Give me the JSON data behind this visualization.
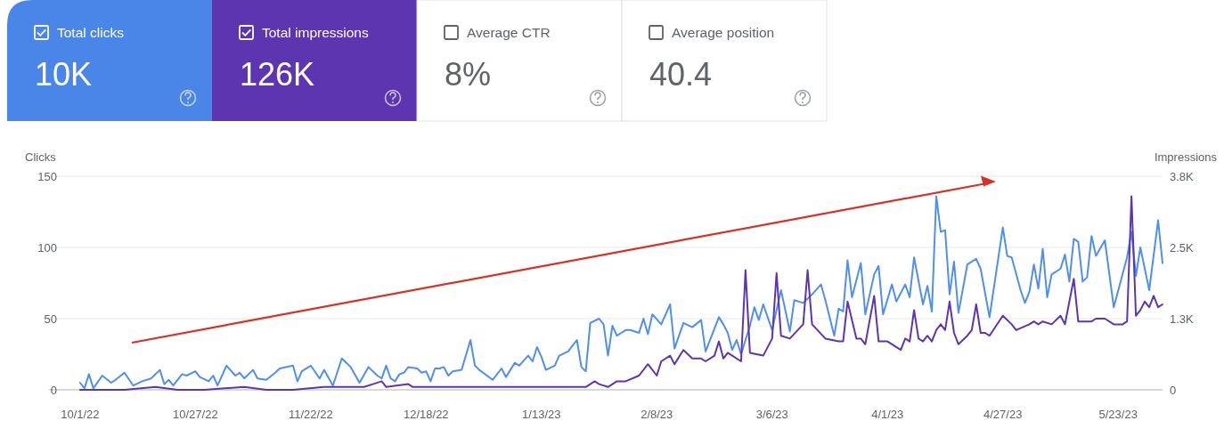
{
  "chart_data": [
    {
      "type": "other",
      "categories": [
        "Total clicks",
        "Total impressions",
        "Average CTR",
        "Average position"
      ],
      "value_labels": [
        "10K",
        "126K",
        "8%",
        "40.4"
      ],
      "colors": [
        "#4a86e8",
        "#5e35b1",
        null,
        null
      ]
    },
    {
      "type": "line",
      "ylabel": "Clicks",
      "y2label": "Impressions",
      "xlim": [
        "2022-09-24",
        "2023-06-02"
      ],
      "xticks": [
        {
          "value": "2022-10-01",
          "label": "10/1/22"
        },
        {
          "value": "2022-10-27",
          "label": "10/27/22"
        },
        {
          "value": "2022-11-22",
          "label": "11/22/22"
        },
        {
          "value": "2022-12-18",
          "label": "12/18/22"
        },
        {
          "value": "2023-01-13",
          "label": "1/13/23"
        },
        {
          "value": "2023-02-08",
          "label": "2/8/23"
        },
        {
          "value": "2023-03-06",
          "label": "3/6/23"
        },
        {
          "value": "2023-04-01",
          "label": "4/1/23"
        },
        {
          "value": "2023-04-27",
          "label": "4/27/23"
        },
        {
          "value": "2023-05-23",
          "label": "5/23/23"
        }
      ],
      "ylim": [
        0,
        150
      ],
      "yticks": [
        0,
        50,
        100,
        150
      ],
      "y2lim": [
        0,
        3750
      ],
      "y2ticks": [
        0,
        {
          "value": 1250,
          "label": "1.3K"
        },
        {
          "value": 2500,
          "label": "2.5K"
        },
        {
          "value": 3750,
          "label": "3.8K"
        }
      ],
      "grid": "y",
      "series": [
        {
          "color": "#4f8ff0",
          "x": [
            "2022-10-01",
            "2022-10-02",
            "2022-10-03",
            "2022-10-04",
            "2022-10-06",
            "2022-10-08",
            "2022-10-09",
            "2022-10-11",
            "2022-10-13",
            "2022-10-15",
            "2022-10-17",
            "2022-10-19",
            "2022-10-20",
            "2022-10-21",
            "2022-10-22",
            "2022-10-24",
            "2022-10-25",
            "2022-10-27",
            "2022-10-28",
            "2022-10-30",
            "2022-10-31",
            "2022-11-01",
            "2022-11-03",
            "2022-11-05",
            "2022-11-06",
            "2022-11-07",
            "2022-11-09",
            "2022-11-10",
            "2022-11-12",
            "2022-11-14",
            "2022-11-15",
            "2022-11-18",
            "2022-11-19",
            "2022-11-20",
            "2022-11-22",
            "2022-11-24",
            "2022-11-25",
            "2022-11-27",
            "2022-11-29",
            "2022-12-01",
            "2022-12-03",
            "2022-12-05",
            "2022-12-07",
            "2022-12-08",
            "2022-12-09",
            "2022-12-10",
            "2022-12-11",
            "2022-12-12",
            "2022-12-13",
            "2022-12-14",
            "2022-12-16",
            "2022-12-17",
            "2022-12-18",
            "2022-12-19",
            "2022-12-20",
            "2022-12-21",
            "2022-12-22",
            "2022-12-23",
            "2022-12-24",
            "2022-12-26",
            "2022-12-28",
            "2022-12-29",
            "2022-12-30",
            "2023-01-02",
            "2023-01-04",
            "2023-01-05",
            "2023-01-07",
            "2023-01-08",
            "2023-01-10",
            "2023-01-11",
            "2023-01-12",
            "2023-01-13",
            "2023-01-14",
            "2023-01-16",
            "2023-01-17",
            "2023-01-19",
            "2023-01-21",
            "2023-01-22",
            "2023-01-23",
            "2023-01-24",
            "2023-01-26",
            "2023-01-27",
            "2023-01-28",
            "2023-01-29",
            "2023-01-30",
            "2023-01-31",
            "2023-02-01",
            "2023-02-02",
            "2023-02-04",
            "2023-02-05",
            "2023-02-06",
            "2023-02-07",
            "2023-02-09",
            "2023-02-11",
            "2023-02-12",
            "2023-02-14",
            "2023-02-16",
            "2023-02-18",
            "2023-02-19",
            "2023-02-22",
            "2023-02-23",
            "2023-02-24",
            "2023-02-25",
            "2023-02-26",
            "2023-02-27",
            "2023-03-01",
            "2023-03-02",
            "2023-03-03",
            "2023-03-04",
            "2023-03-06",
            "2023-03-08",
            "2023-03-10",
            "2023-03-11",
            "2023-03-13",
            "2023-03-15",
            "2023-03-17",
            "2023-03-18",
            "2023-03-20",
            "2023-03-21",
            "2023-03-22",
            "2023-03-23",
            "2023-03-24",
            "2023-03-26",
            "2023-03-27",
            "2023-03-29",
            "2023-03-30",
            "2023-03-31",
            "2023-04-02",
            "2023-04-03",
            "2023-04-05",
            "2023-04-06",
            "2023-04-07",
            "2023-04-09",
            "2023-04-10",
            "2023-04-11",
            "2023-04-12",
            "2023-04-13",
            "2023-04-14",
            "2023-04-15",
            "2023-04-16",
            "2023-04-17",
            "2023-04-19",
            "2023-04-21",
            "2023-04-22",
            "2023-04-24",
            "2023-04-27",
            "2023-04-28",
            "2023-04-29",
            "2023-05-01",
            "2023-05-02",
            "2023-05-03",
            "2023-05-04",
            "2023-05-05",
            "2023-05-06",
            "2023-05-07",
            "2023-05-08",
            "2023-05-10",
            "2023-05-11",
            "2023-05-12",
            "2023-05-13",
            "2023-05-14",
            "2023-05-15",
            "2023-05-16",
            "2023-05-17",
            "2023-05-18",
            "2023-05-20",
            "2023-05-22",
            "2023-05-25",
            "2023-05-26",
            "2023-05-27",
            "2023-05-28",
            "2023-05-30",
            "2023-06-01",
            "2023-06-02"
          ],
          "values": [
            5,
            1,
            11,
            1,
            10,
            5,
            7,
            12,
            3,
            6,
            8,
            14,
            4,
            7,
            3,
            11,
            10,
            13,
            9,
            6,
            10,
            3,
            17,
            10,
            12,
            8,
            14,
            8,
            7,
            12,
            15,
            17,
            6,
            13,
            17,
            8,
            14,
            3,
            22,
            16,
            5,
            16,
            10,
            8,
            17,
            8,
            6,
            11,
            12,
            16,
            15,
            12,
            13,
            6,
            15,
            15,
            16,
            10,
            13,
            14,
            35,
            17,
            14,
            7,
            15,
            9,
            19,
            17,
            24,
            20,
            30,
            23,
            14,
            17,
            24,
            27,
            35,
            16,
            13,
            47,
            50,
            46,
            24,
            45,
            38,
            40,
            42,
            42,
            40,
            50,
            39,
            53,
            46,
            60,
            29,
            47,
            44,
            49,
            27,
            51,
            46,
            40,
            28,
            35,
            25,
            45,
            58,
            49,
            60,
            42,
            70,
            41,
            63,
            61,
            67,
            74,
            63,
            38,
            57,
            55,
            91,
            65,
            89,
            53,
            81,
            87,
            53,
            74,
            62,
            74,
            65,
            93,
            60,
            73,
            55,
            136,
            111,
            112,
            67,
            90,
            54,
            88,
            92,
            85,
            51,
            114,
            94,
            93,
            70,
            61,
            69,
            88,
            71,
            99,
            65,
            81,
            85,
            95,
            76,
            106,
            104,
            76,
            79,
            108,
            94,
            105,
            58,
            93,
            111,
            80,
            100,
            70,
            119,
            89
          ]
        },
        {
          "color": "#5e35b1",
          "axis": "y2",
          "x": [
            "2022-10-01",
            "2022-10-06",
            "2022-10-11",
            "2022-10-18",
            "2022-10-23",
            "2022-10-29",
            "2022-11-07",
            "2022-11-12",
            "2022-11-18",
            "2022-11-25",
            "2022-11-30",
            "2022-12-01",
            "2022-12-04",
            "2022-12-06",
            "2022-12-08",
            "2022-12-09",
            "2022-12-14",
            "2022-12-15",
            "2022-12-22",
            "2022-12-28",
            "2023-01-03",
            "2023-01-11",
            "2023-01-17",
            "2023-01-21",
            "2023-01-23",
            "2023-01-25",
            "2023-01-26",
            "2023-01-28",
            "2023-01-30",
            "2023-02-01",
            "2023-02-04",
            "2023-02-06",
            "2023-02-08",
            "2023-02-09",
            "2023-02-11",
            "2023-02-12",
            "2023-02-14",
            "2023-02-16",
            "2023-02-18",
            "2023-02-19",
            "2023-02-21",
            "2023-02-22",
            "2023-02-23",
            "2023-02-24",
            "2023-02-27",
            "2023-02-28",
            "2023-03-01",
            "2023-03-04",
            "2023-03-06",
            "2023-03-07",
            "2023-03-08",
            "2023-03-10",
            "2023-03-13",
            "2023-03-14",
            "2023-03-15",
            "2023-03-18",
            "2023-03-21",
            "2023-03-22",
            "2023-03-23",
            "2023-03-25",
            "2023-03-26",
            "2023-03-27",
            "2023-03-29",
            "2023-03-30",
            "2023-04-01",
            "2023-04-04",
            "2023-04-05",
            "2023-04-06",
            "2023-04-07",
            "2023-04-08",
            "2023-04-09",
            "2023-04-10",
            "2023-04-11",
            "2023-04-12",
            "2023-04-13",
            "2023-04-14",
            "2023-04-15",
            "2023-04-16",
            "2023-04-17",
            "2023-04-19",
            "2023-04-20",
            "2023-04-21",
            "2023-04-22",
            "2023-04-23",
            "2023-04-24",
            "2023-04-27",
            "2023-04-29",
            "2023-04-30",
            "2023-05-03",
            "2023-05-04",
            "2023-05-05",
            "2023-05-06",
            "2023-05-08",
            "2023-05-10",
            "2023-05-11",
            "2023-05-13",
            "2023-05-14",
            "2023-05-15",
            "2023-05-17",
            "2023-05-18",
            "2023-05-20",
            "2023-05-22",
            "2023-05-24",
            "2023-05-25",
            "2023-05-26",
            "2023-05-27",
            "2023-05-28",
            "2023-05-29",
            "2023-05-30",
            "2023-05-31",
            "2023-06-01",
            "2023-06-02"
          ],
          "values": [
            0,
            0,
            0,
            50,
            0,
            0,
            50,
            0,
            0,
            50,
            50,
            50,
            50,
            100,
            150,
            50,
            100,
            50,
            50,
            50,
            50,
            50,
            50,
            50,
            50,
            150,
            100,
            50,
            150,
            150,
            250,
            450,
            250,
            500,
            600,
            450,
            700,
            550,
            550,
            500,
            600,
            850,
            550,
            650,
            500,
            2100,
            650,
            600,
            900,
            2050,
            950,
            900,
            1150,
            2100,
            1150,
            900,
            850,
            850,
            1550,
            900,
            900,
            800,
            1650,
            850,
            850,
            700,
            900,
            850,
            1400,
            900,
            850,
            950,
            850,
            1050,
            1150,
            1050,
            1550,
            1000,
            800,
            950,
            1050,
            1500,
            1000,
            1000,
            950,
            1300,
            1150,
            1050,
            1150,
            1200,
            1150,
            1200,
            1150,
            1300,
            1150,
            1950,
            1200,
            1200,
            1200,
            1250,
            1250,
            1150,
            1150,
            1200,
            3400,
            1300,
            1400,
            1550,
            1450,
            1650,
            1450,
            1500
          ]
        }
      ]
    }
  ]
}
